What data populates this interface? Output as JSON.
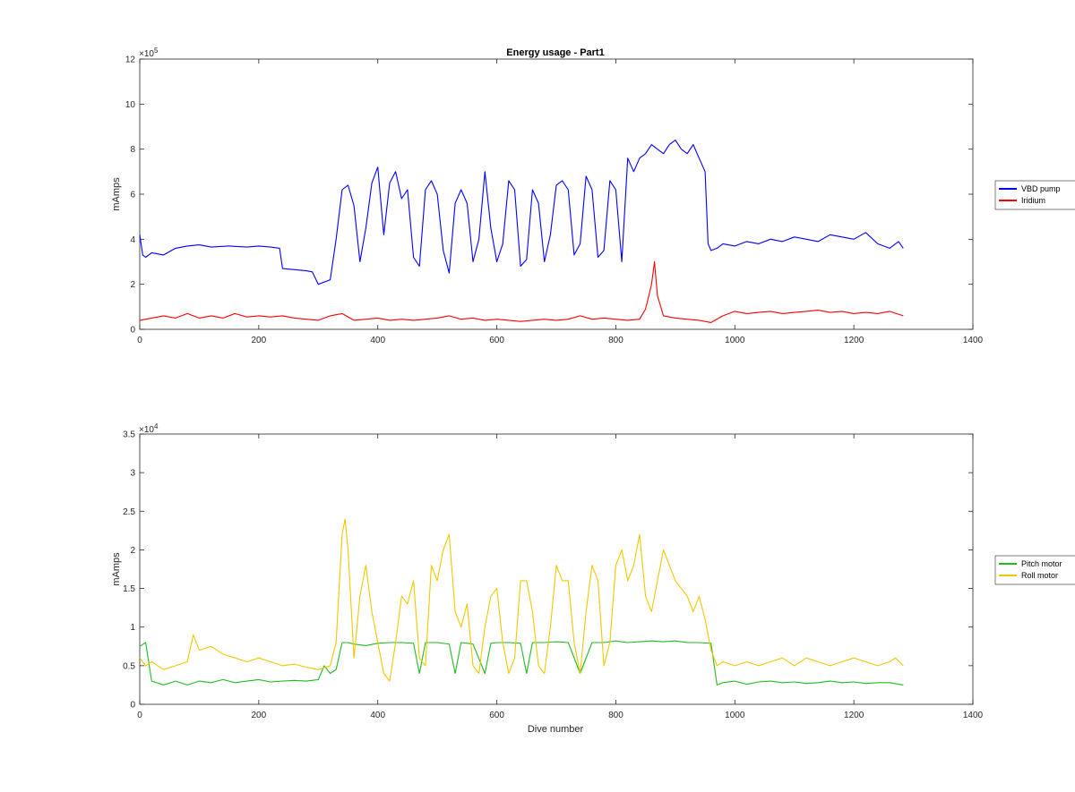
{
  "chart_data": [
    {
      "type": "line",
      "title": "Energy usage - Part1",
      "xlabel": "",
      "ylabel": "mAmps",
      "xlim": [
        0,
        1400
      ],
      "ylim": [
        0,
        1200000
      ],
      "x_ticks": [
        "0",
        "200",
        "400",
        "600",
        "800",
        "1000",
        "1200",
        "1400"
      ],
      "y_ticks": [
        "0",
        "2",
        "4",
        "6",
        "8",
        "10",
        "12"
      ],
      "y_exponent_label": "×10",
      "y_exponent_power": "5",
      "legend_position": "outside-right",
      "grid": false,
      "series": [
        {
          "name": "VBD pump",
          "color": "#0000ff",
          "x": [
            0,
            5,
            10,
            20,
            40,
            60,
            80,
            100,
            120,
            150,
            180,
            200,
            220,
            235,
            240,
            260,
            280,
            290,
            300,
            320,
            330,
            340,
            350,
            360,
            370,
            380,
            390,
            400,
            410,
            420,
            430,
            440,
            450,
            460,
            470,
            480,
            490,
            500,
            510,
            520,
            530,
            540,
            550,
            560,
            570,
            580,
            590,
            600,
            610,
            620,
            630,
            640,
            650,
            660,
            670,
            680,
            690,
            700,
            710,
            720,
            730,
            740,
            750,
            760,
            770,
            780,
            790,
            800,
            810,
            820,
            830,
            840,
            850,
            860,
            870,
            880,
            890,
            900,
            910,
            920,
            930,
            940,
            950,
            955,
            960,
            970,
            980,
            1000,
            1020,
            1040,
            1060,
            1080,
            1100,
            1120,
            1140,
            1160,
            1180,
            1200,
            1220,
            1240,
            1260,
            1275,
            1283
          ],
          "values": [
            420000,
            330000,
            320000,
            340000,
            330000,
            360000,
            370000,
            375000,
            365000,
            370000,
            365000,
            370000,
            365000,
            360000,
            270000,
            265000,
            260000,
            255000,
            200000,
            220000,
            400000,
            620000,
            640000,
            550000,
            300000,
            450000,
            650000,
            720000,
            420000,
            650000,
            700000,
            580000,
            620000,
            320000,
            280000,
            620000,
            660000,
            600000,
            350000,
            250000,
            560000,
            620000,
            560000,
            300000,
            400000,
            700000,
            450000,
            300000,
            380000,
            660000,
            620000,
            280000,
            310000,
            620000,
            560000,
            300000,
            420000,
            640000,
            660000,
            620000,
            330000,
            380000,
            680000,
            620000,
            320000,
            350000,
            660000,
            620000,
            300000,
            760000,
            700000,
            760000,
            780000,
            820000,
            800000,
            780000,
            820000,
            840000,
            800000,
            780000,
            820000,
            760000,
            700000,
            380000,
            350000,
            360000,
            380000,
            370000,
            390000,
            380000,
            400000,
            390000,
            410000,
            400000,
            390000,
            420000,
            410000,
            400000,
            430000,
            380000,
            360000,
            390000,
            360000
          ]
        },
        {
          "name": "Iridium",
          "color": "#ff0000",
          "x": [
            0,
            20,
            40,
            60,
            80,
            100,
            120,
            140,
            160,
            180,
            200,
            220,
            240,
            260,
            280,
            300,
            320,
            340,
            360,
            380,
            400,
            420,
            440,
            460,
            480,
            500,
            520,
            540,
            560,
            580,
            600,
            620,
            640,
            660,
            680,
            700,
            720,
            740,
            760,
            780,
            800,
            820,
            840,
            850,
            860,
            865,
            870,
            880,
            900,
            920,
            940,
            960,
            980,
            1000,
            1020,
            1040,
            1060,
            1080,
            1100,
            1120,
            1140,
            1160,
            1180,
            1200,
            1220,
            1240,
            1260,
            1283
          ],
          "values": [
            40000,
            50000,
            60000,
            50000,
            70000,
            50000,
            60000,
            50000,
            70000,
            55000,
            60000,
            55000,
            60000,
            50000,
            45000,
            40000,
            60000,
            70000,
            40000,
            45000,
            50000,
            40000,
            45000,
            40000,
            45000,
            50000,
            60000,
            45000,
            50000,
            40000,
            45000,
            40000,
            35000,
            40000,
            45000,
            40000,
            45000,
            60000,
            45000,
            50000,
            45000,
            40000,
            45000,
            90000,
            200000,
            300000,
            150000,
            60000,
            50000,
            45000,
            40000,
            30000,
            60000,
            80000,
            70000,
            75000,
            80000,
            70000,
            75000,
            80000,
            85000,
            75000,
            80000,
            70000,
            75000,
            70000,
            80000,
            60000
          ]
        }
      ]
    },
    {
      "type": "line",
      "title": "",
      "xlabel": "Dive number",
      "ylabel": "mAmps",
      "xlim": [
        0,
        1400
      ],
      "ylim": [
        0,
        35000
      ],
      "x_ticks": [
        "0",
        "200",
        "400",
        "600",
        "800",
        "1000",
        "1200",
        "1400"
      ],
      "y_ticks": [
        "0",
        "0.5",
        "1",
        "1.5",
        "2",
        "2.5",
        "3",
        "3.5"
      ],
      "y_exponent_label": "×10",
      "y_exponent_power": "4",
      "legend_position": "outside-right",
      "grid": false,
      "series": [
        {
          "name": "Pitch motor",
          "color": "#22bb22",
          "x": [
            0,
            10,
            20,
            40,
            60,
            80,
            100,
            120,
            140,
            160,
            180,
            200,
            220,
            240,
            260,
            280,
            300,
            310,
            320,
            330,
            340,
            350,
            360,
            380,
            400,
            420,
            440,
            460,
            470,
            480,
            500,
            520,
            530,
            540,
            560,
            580,
            590,
            600,
            620,
            640,
            650,
            660,
            680,
            700,
            720,
            740,
            760,
            780,
            800,
            820,
            840,
            860,
            880,
            900,
            920,
            940,
            960,
            970,
            980,
            1000,
            1020,
            1040,
            1060,
            1080,
            1100,
            1120,
            1140,
            1160,
            1180,
            1200,
            1220,
            1240,
            1260,
            1283
          ],
          "values": [
            7500,
            8000,
            3000,
            2500,
            3000,
            2500,
            3000,
            2800,
            3200,
            2800,
            3000,
            3200,
            2900,
            3000,
            3100,
            3000,
            3200,
            5000,
            4000,
            4500,
            8000,
            8000,
            7800,
            7600,
            7900,
            8000,
            8000,
            7900,
            4000,
            8000,
            8000,
            7800,
            4000,
            8000,
            7800,
            4000,
            7900,
            8000,
            8000,
            7900,
            4000,
            8000,
            8000,
            8100,
            8000,
            4000,
            8000,
            8000,
            8200,
            8000,
            8100,
            8200,
            8100,
            8200,
            8000,
            8000,
            7900,
            2500,
            2800,
            3000,
            2600,
            2900,
            3000,
            2800,
            2900,
            2700,
            2800,
            3000,
            2800,
            2900,
            2700,
            2800,
            2800,
            2500
          ]
        },
        {
          "name": "Roll motor",
          "color": "#f0c800",
          "x": [
            0,
            10,
            20,
            40,
            60,
            80,
            90,
            100,
            120,
            140,
            160,
            180,
            200,
            220,
            240,
            260,
            280,
            300,
            320,
            330,
            340,
            345,
            350,
            360,
            370,
            380,
            390,
            400,
            410,
            420,
            430,
            440,
            450,
            460,
            470,
            480,
            490,
            500,
            510,
            520,
            530,
            540,
            550,
            560,
            570,
            580,
            590,
            600,
            610,
            620,
            630,
            640,
            650,
            660,
            670,
            680,
            690,
            700,
            710,
            720,
            730,
            740,
            750,
            760,
            770,
            780,
            790,
            800,
            810,
            820,
            830,
            840,
            850,
            860,
            870,
            880,
            890,
            900,
            910,
            920,
            930,
            940,
            950,
            960,
            970,
            980,
            1000,
            1020,
            1040,
            1060,
            1080,
            1100,
            1120,
            1140,
            1160,
            1180,
            1200,
            1220,
            1240,
            1260,
            1270,
            1283
          ],
          "values": [
            6000,
            5000,
            5500,
            4500,
            5000,
            5500,
            9000,
            7000,
            7500,
            6500,
            6000,
            5500,
            6000,
            5500,
            5000,
            5200,
            4800,
            4500,
            5000,
            8000,
            22000,
            24000,
            20000,
            6000,
            14000,
            18000,
            12000,
            8000,
            4000,
            3000,
            8000,
            14000,
            13000,
            16000,
            6000,
            5000,
            18000,
            16000,
            20000,
            22000,
            12000,
            10000,
            13000,
            5000,
            4000,
            10000,
            14000,
            15000,
            8000,
            4000,
            6000,
            16000,
            16000,
            12000,
            5000,
            4000,
            10000,
            18000,
            16000,
            16000,
            8000,
            4000,
            12000,
            18000,
            16000,
            5000,
            8000,
            18000,
            20000,
            16000,
            18000,
            22000,
            14000,
            12000,
            16000,
            20000,
            18000,
            16000,
            15000,
            14000,
            12000,
            14000,
            11000,
            7000,
            5000,
            5500,
            5000,
            5500,
            5000,
            5500,
            6000,
            5000,
            6000,
            5500,
            5000,
            5500,
            6000,
            5500,
            5000,
            5500,
            6000,
            5000
          ]
        }
      ]
    }
  ]
}
